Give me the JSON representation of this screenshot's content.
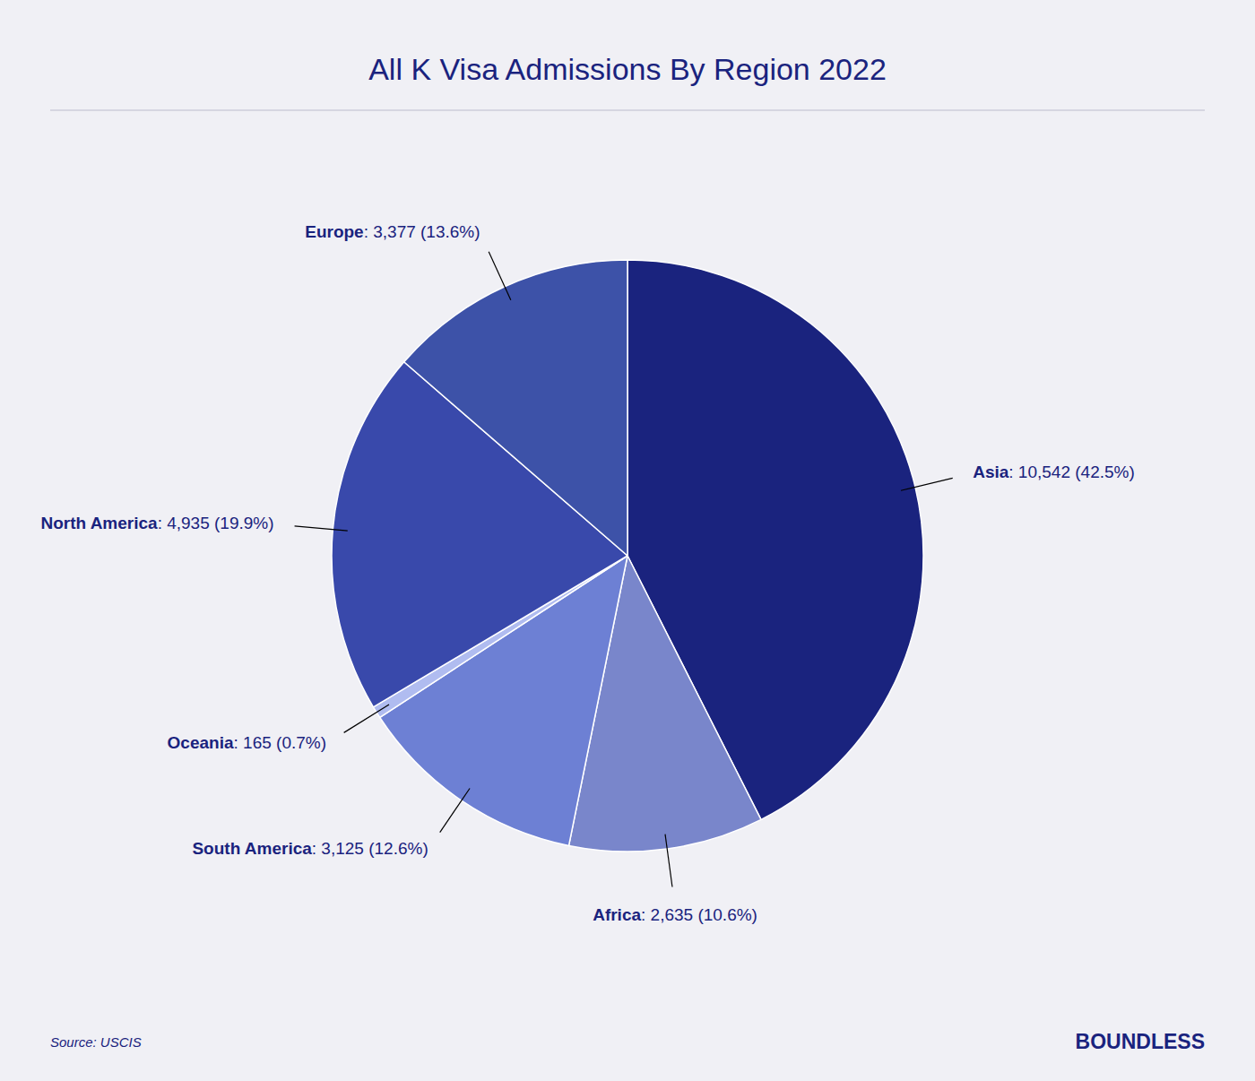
{
  "chart_data": {
    "type": "pie",
    "title": "All K Visa Admissions By Region 2022",
    "categories": [
      "Asia",
      "Africa",
      "South America",
      "Oceania",
      "North America",
      "Europe"
    ],
    "values": [
      10542,
      2635,
      3125,
      165,
      4935,
      3377
    ],
    "value_labels": [
      "Asia: 10,542 (42.5%)",
      "Africa: 2,635 (10.6%)",
      "South America: 3,125 (12.6%)",
      "Oceania: 165 (0.7%)",
      "North America: 4,935 (19.9%)",
      "Europe: 3,377 (13.6%)"
    ],
    "colors": [
      "#1a237e",
      "#7986cb",
      "#6d80d4",
      "#b0bcf0",
      "#3949ab",
      "#3d52a8"
    ],
    "data_labels": true,
    "annotations": [
      "Source: USCIS",
      "BOUNDLESS"
    ]
  }
}
